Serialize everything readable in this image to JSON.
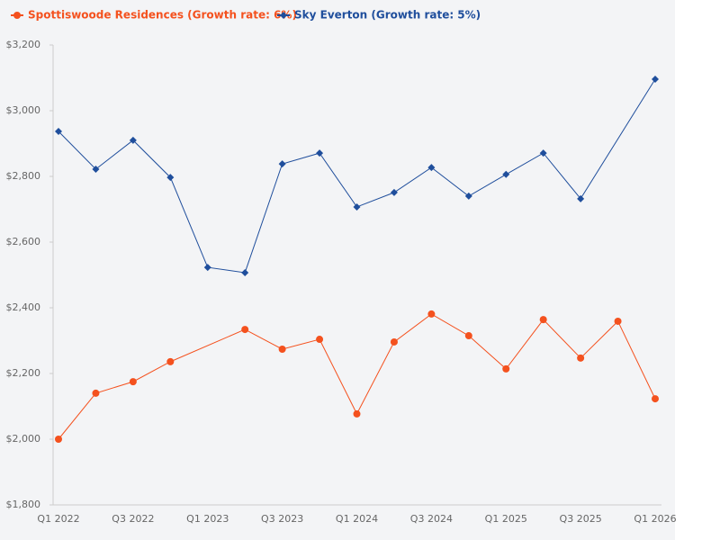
{
  "chart_data": {
    "type": "line",
    "categories": [
      "Q1 2022",
      null,
      "Q3 2022",
      null,
      "Q1 2023",
      null,
      "Q3 2023",
      null,
      "Q1 2024",
      null,
      "Q3 2024",
      null,
      "Q1 2025",
      null,
      "Q3 2025",
      null,
      "Q1 2026"
    ],
    "series": [
      {
        "name": "Spottiswoode Residences (Growth rate: 6%)",
        "color": "#f4511e",
        "marker": "circle",
        "values": [
          2000,
          2140,
          2175,
          2236,
          null,
          2334,
          2274,
          2304,
          2077,
          2296,
          2381,
          2315,
          2214,
          2364,
          2247,
          2359,
          2123
        ]
      },
      {
        "name": "Sky Everton (Growth rate: 5%)",
        "color": "#1f4e9c",
        "marker": "diamond",
        "values": [
          2937,
          2822,
          2910,
          2797,
          2523,
          2507,
          2838,
          2871,
          2707,
          2751,
          2827,
          2740,
          2806,
          2871,
          2732,
          null,
          3096
        ]
      }
    ],
    "connect_gaps": true,
    "ylim": [
      1800,
      3200
    ],
    "yticks": [
      {
        "value": 1800,
        "label": "$1,800"
      },
      {
        "value": 2000,
        "label": "$2,000"
      },
      {
        "value": 2200,
        "label": "$2,200"
      },
      {
        "value": 2400,
        "label": "$2,400"
      },
      {
        "value": 2600,
        "label": "$2,600"
      },
      {
        "value": 2800,
        "label": "$2,800"
      },
      {
        "value": 3000,
        "label": "$3,000"
      },
      {
        "value": 3200,
        "label": "$3,200"
      }
    ],
    "legend": "top-left"
  }
}
